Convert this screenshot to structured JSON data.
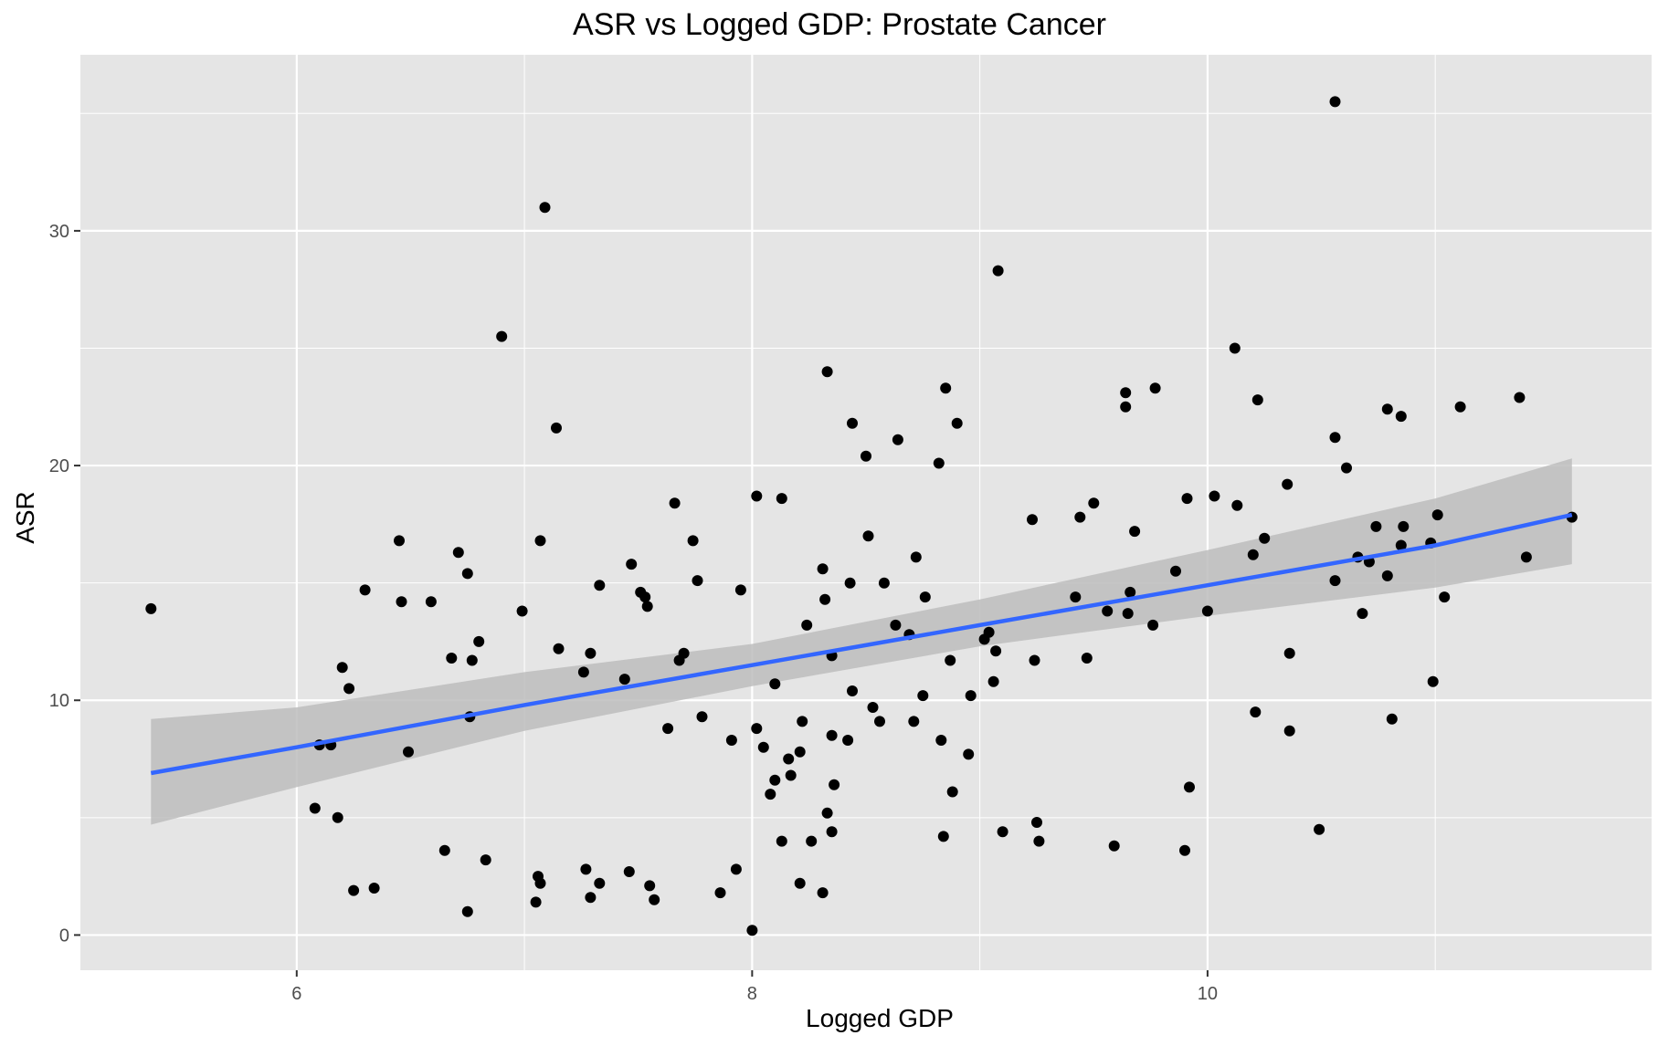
{
  "chart_data": {
    "type": "scatter",
    "title": "ASR vs Logged GDP: Prostate Cancer",
    "xlabel": "Logged GDP",
    "ylabel": "ASR",
    "xlim": [
      5.05,
      11.95
    ],
    "ylim": [
      -1.5,
      37.5
    ],
    "x_ticks": [
      6,
      8,
      10
    ],
    "y_ticks": [
      0,
      10,
      20,
      30
    ],
    "grid": true,
    "colors": {
      "panel": "#e5e5e5",
      "grid": "#ffffff",
      "points": "#000000",
      "fit_line": "#3366ff",
      "ribbon": "#bdbdbd"
    },
    "regression": {
      "x": [
        5.36,
        6,
        7,
        8,
        9,
        10,
        11,
        11.6
      ],
      "y": [
        6.9,
        8.0,
        9.8,
        11.5,
        13.2,
        14.9,
        16.6,
        17.9
      ],
      "lower": [
        4.7,
        6.3,
        8.7,
        10.6,
        12.3,
        13.6,
        14.8,
        15.8
      ],
      "upper": [
        9.2,
        9.7,
        11.2,
        12.4,
        14.3,
        16.4,
        18.6,
        20.3
      ]
    },
    "points": [
      [
        5.36,
        13.9
      ],
      [
        6.08,
        5.4
      ],
      [
        6.1,
        8.1
      ],
      [
        6.15,
        8.1
      ],
      [
        6.18,
        5.0
      ],
      [
        6.2,
        11.4
      ],
      [
        6.23,
        10.5
      ],
      [
        6.25,
        1.9
      ],
      [
        6.3,
        14.7
      ],
      [
        6.34,
        2.0
      ],
      [
        6.45,
        16.8
      ],
      [
        6.46,
        14.2
      ],
      [
        6.49,
        7.8
      ],
      [
        6.59,
        14.2
      ],
      [
        6.65,
        3.6
      ],
      [
        6.68,
        11.8
      ],
      [
        6.71,
        16.3
      ],
      [
        6.75,
        15.4
      ],
      [
        6.75,
        1.0
      ],
      [
        6.76,
        9.3
      ],
      [
        6.77,
        11.7
      ],
      [
        6.8,
        12.5
      ],
      [
        6.83,
        3.2
      ],
      [
        6.9,
        25.5
      ],
      [
        6.99,
        13.8
      ],
      [
        7.05,
        1.4
      ],
      [
        7.06,
        2.5
      ],
      [
        7.07,
        2.2
      ],
      [
        7.07,
        16.8
      ],
      [
        7.09,
        31.0
      ],
      [
        7.14,
        21.6
      ],
      [
        7.15,
        12.2
      ],
      [
        7.26,
        11.2
      ],
      [
        7.27,
        2.8
      ],
      [
        7.29,
        1.6
      ],
      [
        7.29,
        12.0
      ],
      [
        7.33,
        14.9
      ],
      [
        7.33,
        2.2
      ],
      [
        7.44,
        10.9
      ],
      [
        7.46,
        2.7
      ],
      [
        7.47,
        15.8
      ],
      [
        7.51,
        14.6
      ],
      [
        7.53,
        14.4
      ],
      [
        7.54,
        14.0
      ],
      [
        7.55,
        2.1
      ],
      [
        7.57,
        1.5
      ],
      [
        7.63,
        8.8
      ],
      [
        7.66,
        18.4
      ],
      [
        7.68,
        11.7
      ],
      [
        7.7,
        12.0
      ],
      [
        7.74,
        16.8
      ],
      [
        7.76,
        15.1
      ],
      [
        7.78,
        9.3
      ],
      [
        7.86,
        1.8
      ],
      [
        7.91,
        8.3
      ],
      [
        7.93,
        2.8
      ],
      [
        7.95,
        14.7
      ],
      [
        8.0,
        0.2
      ],
      [
        8.02,
        18.7
      ],
      [
        8.02,
        8.8
      ],
      [
        8.05,
        8.0
      ],
      [
        8.08,
        6.0
      ],
      [
        8.1,
        6.6
      ],
      [
        8.1,
        10.7
      ],
      [
        8.13,
        4.0
      ],
      [
        8.13,
        18.6
      ],
      [
        8.16,
        7.5
      ],
      [
        8.17,
        6.8
      ],
      [
        8.21,
        2.2
      ],
      [
        8.21,
        7.8
      ],
      [
        8.22,
        9.1
      ],
      [
        8.24,
        13.2
      ],
      [
        8.26,
        4.0
      ],
      [
        8.31,
        1.8
      ],
      [
        8.31,
        15.6
      ],
      [
        8.32,
        14.3
      ],
      [
        8.33,
        5.2
      ],
      [
        8.33,
        24.0
      ],
      [
        8.35,
        4.4
      ],
      [
        8.35,
        8.5
      ],
      [
        8.35,
        11.9
      ],
      [
        8.36,
        6.4
      ],
      [
        8.42,
        8.3
      ],
      [
        8.43,
        15.0
      ],
      [
        8.44,
        21.8
      ],
      [
        8.44,
        10.4
      ],
      [
        8.5,
        20.4
      ],
      [
        8.51,
        17.0
      ],
      [
        8.53,
        9.7
      ],
      [
        8.56,
        9.1
      ],
      [
        8.58,
        15.0
      ],
      [
        8.63,
        13.2
      ],
      [
        8.64,
        21.1
      ],
      [
        8.69,
        12.8
      ],
      [
        8.71,
        9.1
      ],
      [
        8.72,
        16.1
      ],
      [
        8.75,
        10.2
      ],
      [
        8.76,
        14.4
      ],
      [
        8.82,
        20.1
      ],
      [
        8.83,
        8.3
      ],
      [
        8.84,
        4.2
      ],
      [
        8.85,
        23.3
      ],
      [
        8.87,
        11.7
      ],
      [
        8.88,
        6.1
      ],
      [
        8.9,
        21.8
      ],
      [
        8.95,
        7.7
      ],
      [
        8.96,
        10.2
      ],
      [
        9.02,
        12.6
      ],
      [
        9.04,
        12.9
      ],
      [
        9.06,
        10.8
      ],
      [
        9.07,
        12.1
      ],
      [
        9.08,
        28.3
      ],
      [
        9.1,
        4.4
      ],
      [
        9.23,
        17.7
      ],
      [
        9.24,
        11.7
      ],
      [
        9.25,
        4.8
      ],
      [
        9.26,
        4.0
      ],
      [
        9.42,
        14.4
      ],
      [
        9.44,
        17.8
      ],
      [
        9.47,
        11.8
      ],
      [
        9.5,
        18.4
      ],
      [
        9.56,
        13.8
      ],
      [
        9.59,
        3.8
      ],
      [
        9.64,
        22.5
      ],
      [
        9.64,
        23.1
      ],
      [
        9.65,
        13.7
      ],
      [
        9.66,
        14.6
      ],
      [
        9.68,
        17.2
      ],
      [
        9.76,
        13.2
      ],
      [
        9.77,
        23.3
      ],
      [
        9.86,
        15.5
      ],
      [
        9.9,
        3.6
      ],
      [
        9.91,
        18.6
      ],
      [
        9.92,
        6.3
      ],
      [
        10.0,
        13.8
      ],
      [
        10.03,
        18.7
      ],
      [
        10.12,
        25.0
      ],
      [
        10.13,
        18.3
      ],
      [
        10.2,
        16.2
      ],
      [
        10.21,
        9.5
      ],
      [
        10.22,
        22.8
      ],
      [
        10.25,
        16.9
      ],
      [
        10.35,
        19.2
      ],
      [
        10.36,
        8.7
      ],
      [
        10.36,
        12.0
      ],
      [
        10.49,
        4.5
      ],
      [
        10.56,
        21.2
      ],
      [
        10.56,
        35.5
      ],
      [
        10.56,
        15.1
      ],
      [
        10.61,
        19.9
      ],
      [
        10.66,
        16.1
      ],
      [
        10.68,
        13.7
      ],
      [
        10.71,
        15.9
      ],
      [
        10.74,
        17.4
      ],
      [
        10.79,
        15.3
      ],
      [
        10.79,
        22.4
      ],
      [
        10.81,
        9.2
      ],
      [
        10.85,
        22.1
      ],
      [
        10.86,
        17.4
      ],
      [
        10.85,
        16.6
      ],
      [
        10.98,
        16.7
      ],
      [
        10.99,
        10.8
      ],
      [
        11.01,
        17.9
      ],
      [
        11.04,
        14.4
      ],
      [
        11.11,
        22.5
      ],
      [
        11.37,
        22.9
      ],
      [
        11.4,
        16.1
      ],
      [
        11.6,
        17.8
      ]
    ]
  }
}
